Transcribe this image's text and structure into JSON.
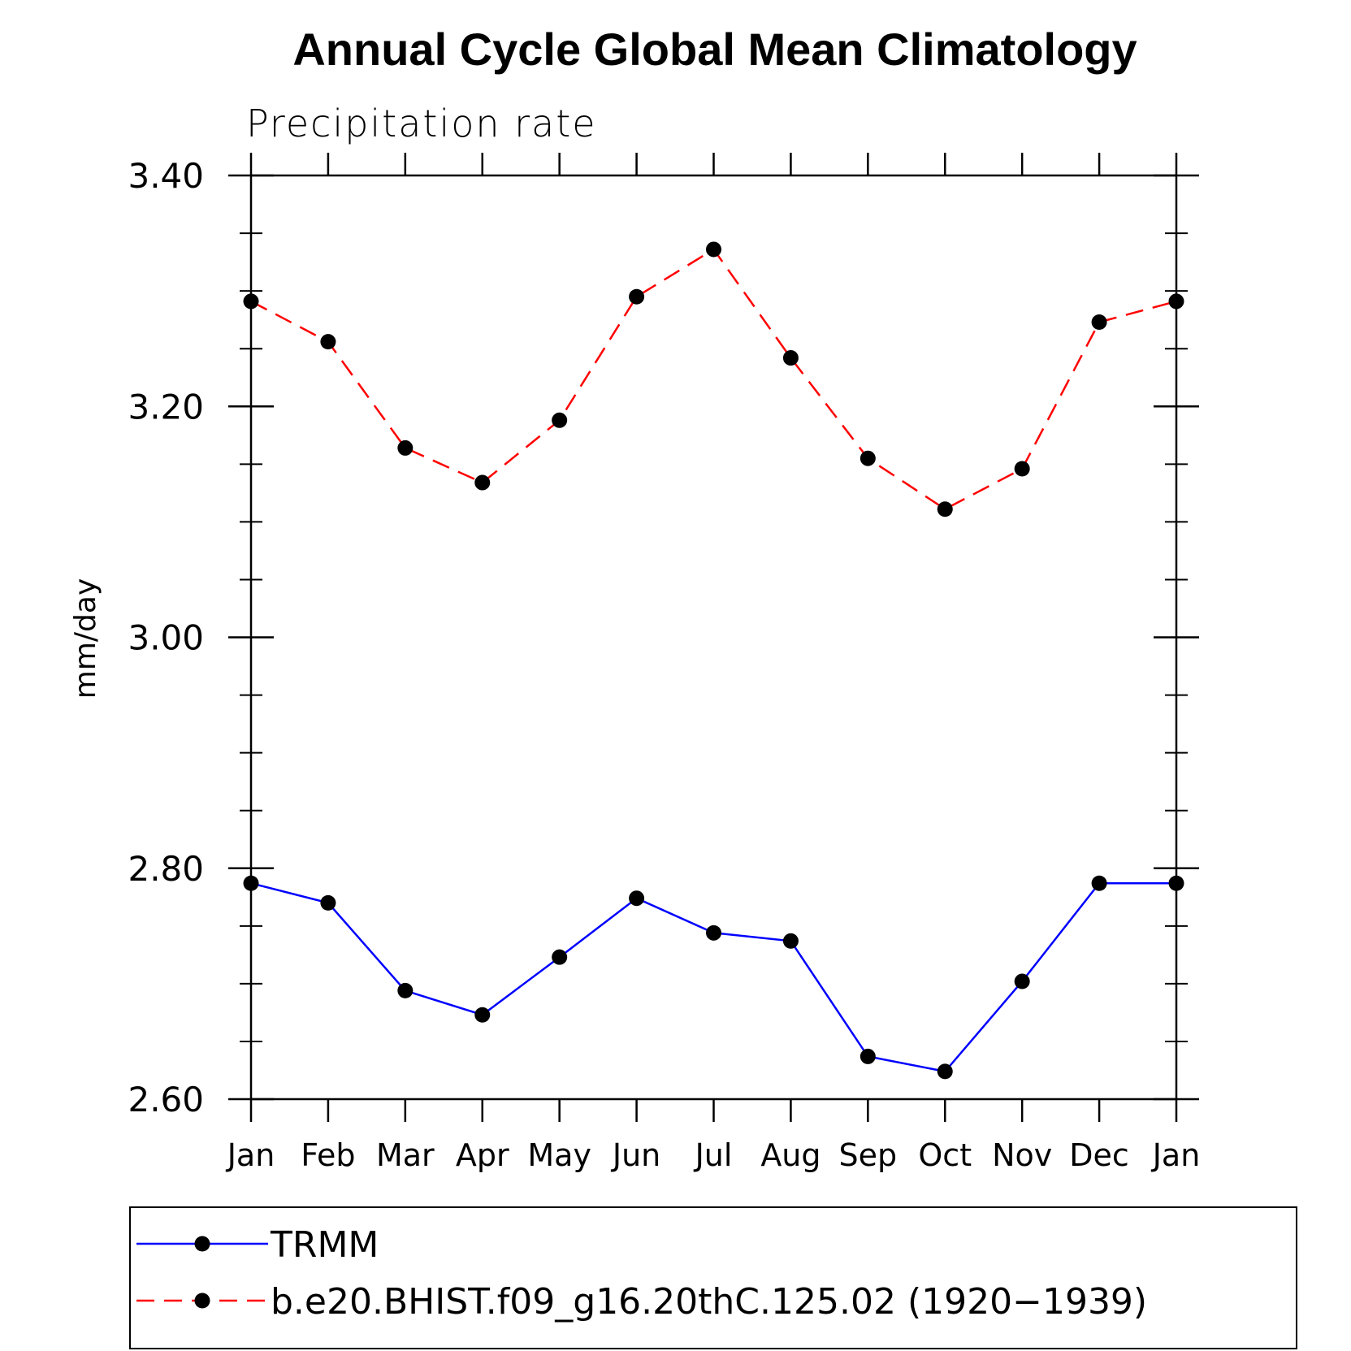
{
  "chart_data": {
    "type": "line",
    "title": "Annual Cycle Global Mean Climatology",
    "subtitle": "Precipitation rate",
    "ylabel": "mm/day",
    "xlabel": "",
    "categories": [
      "Jan",
      "Feb",
      "Mar",
      "Apr",
      "May",
      "Jun",
      "Jul",
      "Aug",
      "Sep",
      "Oct",
      "Nov",
      "Dec",
      "Jan"
    ],
    "ylim": [
      2.6,
      3.4
    ],
    "yticks": [
      "2.60",
      "2.80",
      "3.00",
      "3.20",
      "3.40"
    ],
    "y_minor_step": 0.05,
    "grid": false,
    "legend_position": "bottom",
    "series": [
      {
        "name": "TRMM",
        "color": "#0000ff",
        "dashed": false,
        "values": [
          2.787,
          2.77,
          2.694,
          2.673,
          2.723,
          2.774,
          2.744,
          2.737,
          2.637,
          2.624,
          2.702,
          2.787,
          2.787
        ]
      },
      {
        "name": "b.e20.BHIST.f09_g16.20thC.125.02 (1920−1939)",
        "color": "#ff0000",
        "dashed": true,
        "values": [
          3.291,
          3.256,
          3.164,
          3.134,
          3.188,
          3.295,
          3.336,
          3.242,
          3.155,
          3.111,
          3.146,
          3.273,
          3.291
        ]
      }
    ]
  }
}
